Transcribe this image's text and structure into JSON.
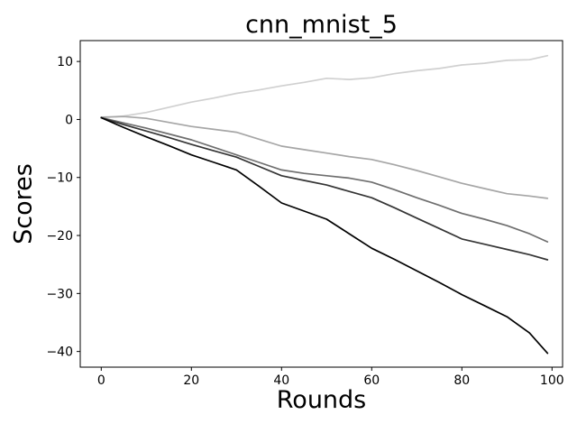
{
  "chart_data": {
    "type": "line",
    "title": "cnn_mnist_5",
    "xlabel": "Rounds",
    "ylabel": "Scores",
    "xlim": [
      -4.66,
      102.34
    ],
    "ylim": [
      -42.7,
      13.6
    ],
    "xticks": [
      0,
      20,
      40,
      60,
      80,
      100
    ],
    "yticks": [
      10,
      0,
      -10,
      -20,
      -30,
      -40
    ],
    "grid": false,
    "legend": false,
    "background": "#ffffff",
    "axis_color": "#000000",
    "x": [
      0,
      5,
      10,
      15,
      20,
      25,
      30,
      35,
      40,
      45,
      50,
      55,
      60,
      65,
      70,
      75,
      80,
      85,
      90,
      95,
      99
    ],
    "series": [
      {
        "name": "lightest-gray",
        "color": "#d0d0d0",
        "values": [
          0.3,
          0.6,
          1.2,
          2.1,
          3.0,
          3.7,
          4.5,
          5.1,
          5.8,
          6.4,
          7.1,
          6.9,
          7.2,
          7.9,
          8.4,
          8.8,
          9.4,
          9.7,
          10.2,
          10.3,
          11.0
        ]
      },
      {
        "name": "light-gray",
        "color": "#a6a6a6",
        "values": [
          0.4,
          0.5,
          0.2,
          -0.5,
          -1.2,
          -1.7,
          -2.2,
          -3.4,
          -4.6,
          -5.2,
          -5.8,
          -6.4,
          -6.9,
          -7.8,
          -8.8,
          -9.9,
          -11.0,
          -11.9,
          -12.8,
          -13.2,
          -13.6
        ]
      },
      {
        "name": "medium-gray",
        "color": "#6f6f6f",
        "values": [
          0.3,
          -0.6,
          -1.5,
          -2.5,
          -3.5,
          -4.8,
          -6.1,
          -7.4,
          -8.7,
          -9.3,
          -9.7,
          -10.1,
          -10.8,
          -12.1,
          -13.5,
          -14.8,
          -16.2,
          -17.2,
          -18.3,
          -19.7,
          -21.1
        ]
      },
      {
        "name": "dark-gray",
        "color": "#353535",
        "values": [
          0.3,
          -0.9,
          -2.0,
          -3.1,
          -4.3,
          -5.4,
          -6.5,
          -8.1,
          -9.7,
          -10.5,
          -11.3,
          -12.4,
          -13.5,
          -15.2,
          -17.0,
          -18.8,
          -20.6,
          -21.5,
          -22.4,
          -23.3,
          -24.2
        ]
      },
      {
        "name": "black",
        "color": "#000000",
        "values": [
          0.3,
          -1.4,
          -3.0,
          -4.5,
          -6.1,
          -7.4,
          -8.7,
          -11.5,
          -14.4,
          -15.8,
          -17.2,
          -19.7,
          -22.2,
          -24.1,
          -26.1,
          -28.1,
          -30.2,
          -32.1,
          -34.0,
          -36.8,
          -40.3
        ]
      }
    ]
  }
}
